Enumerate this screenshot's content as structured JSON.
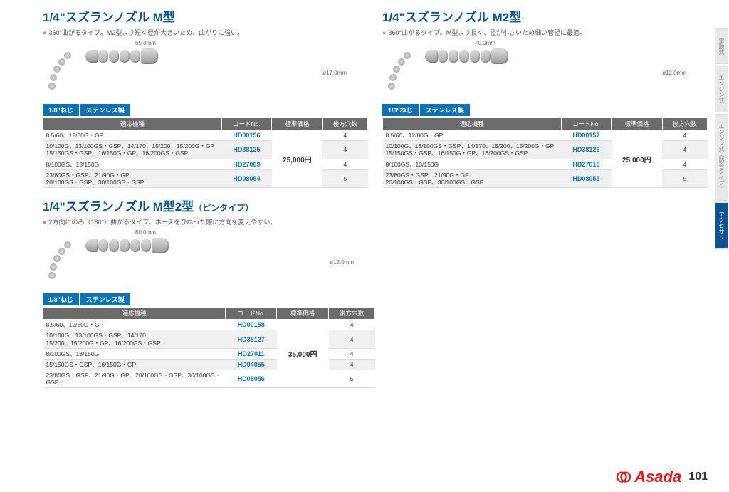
{
  "products": [
    {
      "title": "1/4\"スズランノズル M型",
      "subtitle": "",
      "desc": "360°曲がるタイプ。M2型より短く径が大きいため、曲がりに強い。",
      "length": "65.0mm",
      "diameter": "ø17.0mm",
      "segments": 4,
      "badges": [
        "1/8\"ねじ",
        "ステンレス製"
      ],
      "headers": [
        "適応機種",
        "コードNo.",
        "標準価格",
        "後方穴数"
      ],
      "rows": [
        {
          "model": "8.5/60、12/80G・GP",
          "code": "HD00156",
          "holes": "4"
        },
        {
          "model": "10/100G、13/100GS・GSP、14/170、15/200、15/200G・GP\n15/150GS・GSP、16/150G・GP、16/200GS・GSP",
          "code": "HD38125",
          "holes": "4"
        },
        {
          "model": "8/100GS、13/150G",
          "code": "HD27009",
          "holes": "4"
        },
        {
          "model": "23/80GS・GSP、21/90G・GP\n20/100GS・GSP、30/100GS・GSP",
          "code": "HD08054",
          "holes": "5"
        }
      ],
      "price": "25,000円",
      "priceRowspan": 4
    },
    {
      "title": "1/4\"スズランノズル M2型",
      "subtitle": "",
      "desc": "360°曲がるタイプ。M型より長く、径が小さいため細い管径に最適。",
      "length": "70.0mm",
      "diameter": "ø12.0mm",
      "segments": 5,
      "badges": [
        "1/8\"ねじ",
        "ステンレス製"
      ],
      "headers": [
        "適応機種",
        "コードNo.",
        "標準価格",
        "後方穴数"
      ],
      "rows": [
        {
          "model": "8.5/60、12/80G・GP",
          "code": "HD00157",
          "holes": "4"
        },
        {
          "model": "10/100G、13/100GS・GSP、14/170、15/200、15/200G・GP\n15/150GS・GSP、16/150G・GP、16/200GS・GSP",
          "code": "HD38126",
          "holes": "4"
        },
        {
          "model": "8/100GS、13/150G",
          "code": "HD27010",
          "holes": "4"
        },
        {
          "model": "23/80GS・GSP、21/90G・GP\n20/100GS・GSP、30/100GS・GSP",
          "code": "HD08055",
          "holes": "5"
        }
      ],
      "price": "25,000円",
      "priceRowspan": 4
    },
    {
      "title": "1/4\"スズランノズル M型2型",
      "subtitle": "（ピンタイプ）",
      "desc": "2方向にのみ（180°）曲がるタイプ。ホースをひねった際に方向を変えやすい。",
      "length": "80.0mm",
      "diameter": "ø12.0mm",
      "segments": 5,
      "badges": [
        "1/8\"ねじ",
        "ステンレス製"
      ],
      "headers": [
        "適応機種",
        "コードNo.",
        "標準価格",
        "後方穴数"
      ],
      "rows": [
        {
          "model": "8.5/60、12/80G・GP",
          "code": "HD00158",
          "holes": "4"
        },
        {
          "model": "10/100G、13/100GS・GSP、14/170\n15/200、15/200G・GP、16/200GS・GSP",
          "code": "HD38127",
          "holes": "4"
        },
        {
          "model": "8/100GS、13/150G",
          "code": "HD27011",
          "holes": "4"
        },
        {
          "model": "15/150GS・GSP、16/150G・GP",
          "code": "HD04055",
          "holes": "4"
        },
        {
          "model": "23/80GS・GSP、21/90G・GP、20/100GS・GSP、30/100GS・GSP",
          "code": "HD08056",
          "holes": "5"
        }
      ],
      "price": "35,000円",
      "priceRowspan": 5
    }
  ],
  "sidebarTabs": [
    "電動式",
    "エンジン式",
    "エンジン式（防音タイプ）",
    "アクセサリ"
  ],
  "sidebarActive": 3,
  "logoText": "Asada",
  "pageNumber": "101",
  "colors": {
    "titleBlue": "#0b5394",
    "badgeBlue": "#0b72b5",
    "headerGray": "#6b6b6b",
    "logoRed": "#e31b23"
  }
}
